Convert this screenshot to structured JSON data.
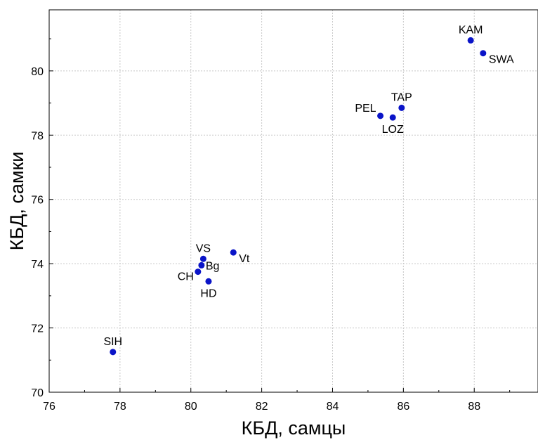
{
  "chart_data": {
    "type": "scatter",
    "title": "",
    "xlabel": "КБД, самцы",
    "ylabel": "КБД, самки",
    "xlim": [
      76,
      89.8
    ],
    "ylim": [
      70,
      81.9
    ],
    "xticks": [
      76,
      78,
      80,
      82,
      84,
      86,
      88
    ],
    "yticks": [
      70,
      72,
      74,
      76,
      78,
      80
    ],
    "grid": true,
    "point_color": "#0a14c8",
    "points": [
      {
        "label": "KAM",
        "x": 87.9,
        "y": 80.95,
        "label_pos": "above"
      },
      {
        "label": "SWA",
        "x": 88.25,
        "y": 80.55,
        "label_pos": "right-below"
      },
      {
        "label": "TAP",
        "x": 85.95,
        "y": 78.85,
        "label_pos": "above"
      },
      {
        "label": "PEL",
        "x": 85.35,
        "y": 78.6,
        "label_pos": "left-above"
      },
      {
        "label": "LOZ",
        "x": 85.7,
        "y": 78.55,
        "label_pos": "below"
      },
      {
        "label": "Vt",
        "x": 81.2,
        "y": 74.35,
        "label_pos": "right-below"
      },
      {
        "label": "VS",
        "x": 80.35,
        "y": 74.15,
        "label_pos": "above"
      },
      {
        "label": "Bg",
        "x": 80.3,
        "y": 73.95,
        "label_pos": "right"
      },
      {
        "label": "CH",
        "x": 80.2,
        "y": 73.75,
        "label_pos": "left-below"
      },
      {
        "label": "HD",
        "x": 80.5,
        "y": 73.45,
        "label_pos": "below"
      },
      {
        "label": "SIH",
        "x": 77.8,
        "y": 71.25,
        "label_pos": "above"
      }
    ]
  }
}
